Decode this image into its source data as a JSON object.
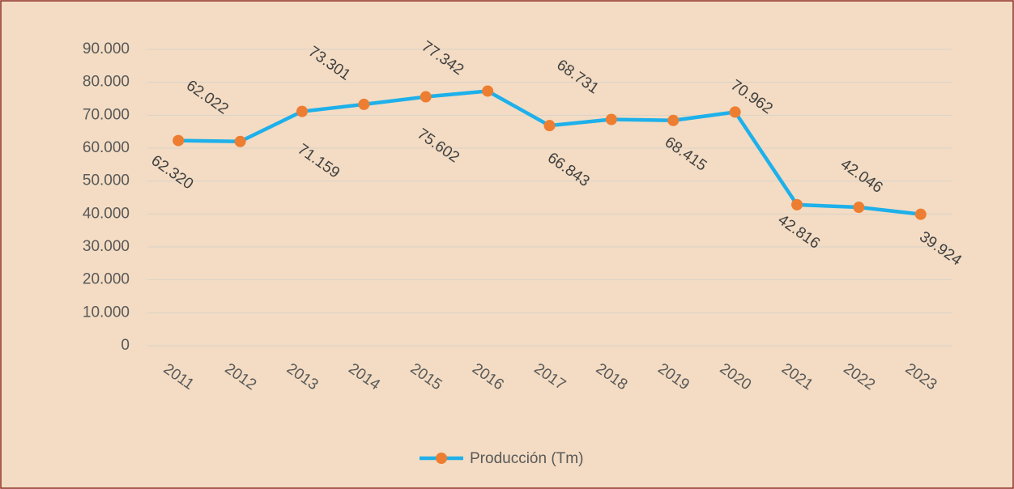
{
  "chart_data": {
    "type": "line",
    "categories": [
      "2011",
      "2012",
      "2013",
      "2014",
      "2015",
      "2016",
      "2017",
      "2018",
      "2019",
      "2020",
      "2021",
      "2022",
      "2023"
    ],
    "series": [
      {
        "name": "Producción (Tm)",
        "color": "#1eb0ea",
        "marker_color": "#ed7d31",
        "values": [
          62320,
          62022,
          71159,
          73301,
          75602,
          77342,
          66843,
          68731,
          68415,
          70962,
          42816,
          42046,
          39924
        ],
        "value_labels": [
          "62.320",
          "62.022",
          "71.159",
          "73.301",
          "75.602",
          "77.342",
          "66.843",
          "68.731",
          "68.415",
          "70.962",
          "42.816",
          "42.046",
          "39.924"
        ]
      }
    ],
    "ylim": [
      0,
      90000
    ],
    "yticks": [
      0,
      {
        "value": 10000,
        "label": "10.000"
      },
      {
        "value": 20000,
        "label": "20.000"
      },
      {
        "value": 30000,
        "label": "30.000"
      },
      {
        "value": 40000,
        "label": "40.000"
      },
      {
        "value": 50000,
        "label": "50.000"
      },
      {
        "value": 60000,
        "label": "60.000"
      },
      {
        "value": 70000,
        "label": "70.000"
      },
      {
        "value": 80000,
        "label": "80.000"
      },
      {
        "value": 90000,
        "label": "90.000"
      }
    ],
    "grid": true,
    "legend": "bottom"
  }
}
